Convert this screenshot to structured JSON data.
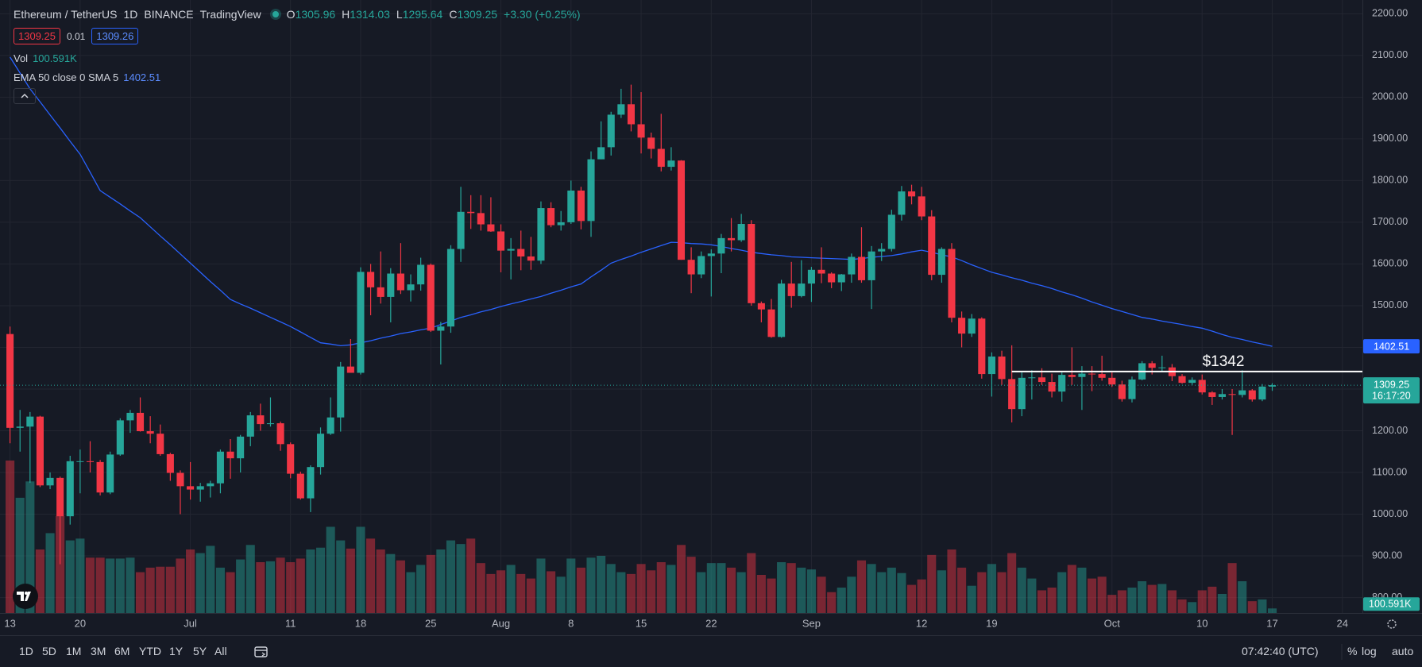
{
  "chart_data": {
    "type": "candlestick",
    "title_parts": [
      "Ethereum / TetherUS",
      "1D",
      "BINANCE",
      "TradingView"
    ],
    "ohlc_labels": [
      "O",
      "H",
      "L",
      "C"
    ],
    "change_label": "+3.30 (+0.25%)",
    "bid": 1309.25,
    "spread": 0.01,
    "ask": 1309.26,
    "volume_name": "Vol",
    "volume_last_label": "100.591K",
    "up_color": "#26a69a",
    "down_color": "#f23645",
    "ylim": [
      763,
      2233
    ],
    "yticks": [
      {
        "value": 800,
        "label": "800.00"
      },
      {
        "value": 900,
        "label": "900.00"
      },
      {
        "value": 1000,
        "label": "1000.00"
      },
      {
        "value": 1100,
        "label": "1100.00"
      },
      {
        "value": 1200,
        "label": "1200.00"
      },
      {
        "value": 1300,
        "label": "1300.00"
      },
      {
        "value": 1400,
        "label": "1400.00"
      },
      {
        "value": 1500,
        "label": "1500.00"
      },
      {
        "value": 1600,
        "label": "1600.00"
      },
      {
        "value": 1700,
        "label": "1700.00"
      },
      {
        "value": 1800,
        "label": "1800.00"
      },
      {
        "value": 1900,
        "label": "1900.00"
      },
      {
        "value": 2000,
        "label": "2000.00"
      },
      {
        "value": 2100,
        "label": "2100.00"
      },
      {
        "value": 2200,
        "label": "2200.00"
      }
    ],
    "xlim": [
      -1,
      135
    ],
    "xticks": [
      {
        "value": 0,
        "label": "13"
      },
      {
        "value": 7,
        "label": "20"
      },
      {
        "value": 18,
        "label": "Jul"
      },
      {
        "value": 28,
        "label": "11"
      },
      {
        "value": 35,
        "label": "18"
      },
      {
        "value": 42,
        "label": "25"
      },
      {
        "value": 49,
        "label": "Aug"
      },
      {
        "value": 56,
        "label": "8"
      },
      {
        "value": 63,
        "label": "15"
      },
      {
        "value": 70,
        "label": "22"
      },
      {
        "value": 80,
        "label": "Sep"
      },
      {
        "value": 91,
        "label": "12"
      },
      {
        "value": 98,
        "label": "19"
      },
      {
        "value": 110,
        "label": "Oct"
      },
      {
        "value": 119,
        "label": "10"
      },
      {
        "value": 126,
        "label": "17"
      },
      {
        "value": 133,
        "label": "24"
      }
    ],
    "grid": true,
    "candles": [
      [
        1432,
        1450,
        1170,
        1207
      ],
      [
        1207,
        1250,
        1150,
        1210
      ],
      [
        1210,
        1245,
        1075,
        1234
      ],
      [
        1234,
        1236,
        1065,
        1069
      ],
      [
        1069,
        1100,
        1060,
        1087
      ],
      [
        1087,
        1090,
        880,
        995
      ],
      [
        995,
        1140,
        975,
        1127
      ],
      [
        1127,
        1155,
        1050,
        1127
      ],
      [
        1127,
        1175,
        1100,
        1125
      ],
      [
        1125,
        1130,
        1045,
        1052
      ],
      [
        1052,
        1150,
        1048,
        1143
      ],
      [
        1143,
        1230,
        1140,
        1225
      ],
      [
        1225,
        1250,
        1195,
        1243
      ],
      [
        1243,
        1280,
        1198,
        1199
      ],
      [
        1199,
        1235,
        1170,
        1193
      ],
      [
        1193,
        1215,
        1140,
        1144
      ],
      [
        1144,
        1147,
        1080,
        1099
      ],
      [
        1099,
        1105,
        1000,
        1067
      ],
      [
        1067,
        1125,
        1035,
        1059
      ],
      [
        1059,
        1075,
        1030,
        1067
      ],
      [
        1067,
        1080,
        1040,
        1074
      ],
      [
        1074,
        1155,
        1050,
        1150
      ],
      [
        1150,
        1180,
        1085,
        1134
      ],
      [
        1134,
        1190,
        1100,
        1186
      ],
      [
        1186,
        1245,
        1163,
        1237
      ],
      [
        1237,
        1265,
        1200,
        1216
      ],
      [
        1216,
        1280,
        1210,
        1218
      ],
      [
        1218,
        1222,
        1152,
        1168
      ],
      [
        1168,
        1172,
        1086,
        1097
      ],
      [
        1097,
        1102,
        1035,
        1038
      ],
      [
        1038,
        1117,
        1005,
        1113
      ],
      [
        1113,
        1208,
        1095,
        1193
      ],
      [
        1193,
        1280,
        1190,
        1232
      ],
      [
        1232,
        1365,
        1198,
        1354
      ],
      [
        1354,
        1420,
        1339,
        1339
      ],
      [
        1339,
        1592,
        1335,
        1581
      ],
      [
        1581,
        1600,
        1477,
        1544
      ],
      [
        1544,
        1630,
        1505,
        1521
      ],
      [
        1521,
        1590,
        1460,
        1577
      ],
      [
        1577,
        1650,
        1528,
        1537
      ],
      [
        1537,
        1575,
        1510,
        1551
      ],
      [
        1551,
        1615,
        1536,
        1598
      ],
      [
        1598,
        1601,
        1437,
        1440
      ],
      [
        1440,
        1461,
        1359,
        1450
      ],
      [
        1450,
        1645,
        1435,
        1636
      ],
      [
        1636,
        1785,
        1605,
        1725
      ],
      [
        1725,
        1765,
        1684,
        1722
      ],
      [
        1722,
        1765,
        1680,
        1695
      ],
      [
        1695,
        1760,
        1677,
        1678
      ],
      [
        1678,
        1695,
        1580,
        1632
      ],
      [
        1632,
        1662,
        1563,
        1636
      ],
      [
        1636,
        1680,
        1585,
        1618
      ],
      [
        1618,
        1665,
        1586,
        1608
      ],
      [
        1608,
        1750,
        1600,
        1734
      ],
      [
        1734,
        1748,
        1688,
        1693
      ],
      [
        1693,
        1727,
        1680,
        1700
      ],
      [
        1700,
        1800,
        1696,
        1776
      ],
      [
        1776,
        1785,
        1683,
        1703
      ],
      [
        1703,
        1870,
        1665,
        1851
      ],
      [
        1851,
        1942,
        1851,
        1880
      ],
      [
        1880,
        1965,
        1860,
        1958
      ],
      [
        1958,
        2020,
        1950,
        1983
      ],
      [
        1983,
        2030,
        1918,
        1935
      ],
      [
        1935,
        2012,
        1865,
        1903
      ],
      [
        1903,
        1915,
        1853,
        1876
      ],
      [
        1876,
        1960,
        1822,
        1833
      ],
      [
        1833,
        1880,
        1824,
        1848
      ],
      [
        1848,
        1849,
        1610,
        1610
      ],
      [
        1610,
        1640,
        1530,
        1575
      ],
      [
        1575,
        1630,
        1566,
        1619
      ],
      [
        1619,
        1635,
        1522,
        1625
      ],
      [
        1625,
        1672,
        1578,
        1662
      ],
      [
        1662,
        1710,
        1630,
        1657
      ],
      [
        1657,
        1720,
        1653,
        1696
      ],
      [
        1696,
        1705,
        1500,
        1506
      ],
      [
        1506,
        1510,
        1460,
        1491
      ],
      [
        1491,
        1516,
        1423,
        1425
      ],
      [
        1425,
        1562,
        1423,
        1553
      ],
      [
        1553,
        1605,
        1495,
        1523
      ],
      [
        1523,
        1609,
        1520,
        1553
      ],
      [
        1553,
        1593,
        1509,
        1586
      ],
      [
        1586,
        1640,
        1554,
        1577
      ],
      [
        1577,
        1580,
        1542,
        1556
      ],
      [
        1556,
        1576,
        1535,
        1575
      ],
      [
        1575,
        1625,
        1555,
        1617
      ],
      [
        1617,
        1688,
        1555,
        1561
      ],
      [
        1561,
        1643,
        1492,
        1630
      ],
      [
        1630,
        1650,
        1607,
        1636
      ],
      [
        1636,
        1730,
        1630,
        1718
      ],
      [
        1718,
        1787,
        1704,
        1774
      ],
      [
        1774,
        1790,
        1743,
        1762
      ],
      [
        1762,
        1785,
        1705,
        1714
      ],
      [
        1714,
        1729,
        1561,
        1574
      ],
      [
        1574,
        1640,
        1555,
        1636
      ],
      [
        1636,
        1650,
        1460,
        1471
      ],
      [
        1471,
        1486,
        1400,
        1433
      ],
      [
        1433,
        1480,
        1425,
        1469
      ],
      [
        1469,
        1472,
        1325,
        1336
      ],
      [
        1336,
        1388,
        1282,
        1378
      ],
      [
        1378,
        1392,
        1310,
        1324
      ],
      [
        1324,
        1405,
        1220,
        1252
      ],
      [
        1252,
        1340,
        1235,
        1327
      ],
      [
        1327,
        1345,
        1275,
        1328
      ],
      [
        1328,
        1350,
        1310,
        1317
      ],
      [
        1317,
        1337,
        1280,
        1294
      ],
      [
        1294,
        1340,
        1270,
        1334
      ],
      [
        1334,
        1400,
        1310,
        1329
      ],
      [
        1329,
        1355,
        1250,
        1337
      ],
      [
        1337,
        1355,
        1295,
        1336
      ],
      [
        1336,
        1380,
        1320,
        1327
      ],
      [
        1327,
        1340,
        1305,
        1311
      ],
      [
        1311,
        1320,
        1270,
        1276
      ],
      [
        1276,
        1330,
        1268,
        1323
      ],
      [
        1323,
        1367,
        1321,
        1362
      ],
      [
        1362,
        1367,
        1335,
        1351
      ],
      [
        1351,
        1380,
        1342,
        1352
      ],
      [
        1352,
        1360,
        1319,
        1331
      ],
      [
        1331,
        1336,
        1313,
        1315
      ],
      [
        1315,
        1328,
        1310,
        1322
      ],
      [
        1322,
        1335,
        1287,
        1292
      ],
      [
        1292,
        1295,
        1262,
        1281
      ],
      [
        1281,
        1300,
        1275,
        1288
      ],
      [
        1288,
        1300,
        1190,
        1286
      ],
      [
        1286,
        1345,
        1280,
        1297
      ],
      [
        1297,
        1300,
        1270,
        1275
      ],
      [
        1275,
        1312,
        1271,
        1306
      ],
      [
        1305.96,
        1314.03,
        1295.64,
        1309.25
      ]
    ],
    "volume": [
      3360000,
      2540000,
      2900000,
      1400000,
      1760000,
      2140000,
      1600000,
      1640000,
      1220000,
      1220000,
      1200000,
      1200000,
      1220000,
      900000,
      1000000,
      1020000,
      1020000,
      1200000,
      1400000,
      1320000,
      1480000,
      1000000,
      900000,
      1180000,
      1500000,
      1120000,
      1140000,
      1220000,
      1120000,
      1200000,
      1400000,
      1440000,
      1900000,
      1600000,
      1420000,
      1900000,
      1640000,
      1400000,
      1300000,
      1160000,
      900000,
      1060000,
      1280000,
      1400000,
      1600000,
      1520000,
      1640000,
      1100000,
      860000,
      940000,
      1060000,
      860000,
      760000,
      1200000,
      920000,
      800000,
      1200000,
      1000000,
      1220000,
      1260000,
      1080000,
      900000,
      860000,
      1080000,
      940000,
      1120000,
      1060000,
      1500000,
      1240000,
      900000,
      1100000,
      1100000,
      1000000,
      900000,
      1320000,
      840000,
      760000,
      1120000,
      1100000,
      1000000,
      960000,
      800000,
      460000,
      560000,
      800000,
      1160000,
      1080000,
      900000,
      1000000,
      880000,
      620000,
      740000,
      1280000,
      940000,
      1400000,
      1000000,
      600000,
      900000,
      1080000,
      900000,
      1320000,
      1000000,
      760000,
      500000,
      560000,
      900000,
      1060000,
      1000000,
      760000,
      800000,
      400000,
      500000,
      560000,
      700000,
      620000,
      640000,
      500000,
      300000,
      240000,
      500000,
      580000,
      420000,
      1100000,
      700000,
      260000,
      300000,
      100591
    ],
    "ema": {
      "name": "EMA 50 close 0 SMA 5",
      "color": "#2962ff",
      "values": [
        2096,
        2058,
        2020,
        1989,
        1957,
        1926,
        1894,
        1863,
        1820,
        1776,
        1760,
        1744,
        1727,
        1711,
        1689,
        1667,
        1646,
        1624,
        1602,
        1580,
        1558,
        1537,
        1515,
        1504,
        1494,
        1483,
        1472,
        1461,
        1450,
        1437,
        1424,
        1411,
        1408,
        1404,
        1406,
        1411,
        1416,
        1422,
        1427,
        1433,
        1437,
        1442,
        1446,
        1455,
        1463,
        1472,
        1478,
        1485,
        1491,
        1498,
        1504,
        1510,
        1516,
        1522,
        1530,
        1537,
        1545,
        1552,
        1569,
        1585,
        1602,
        1611,
        1619,
        1628,
        1636,
        1644,
        1652,
        1651,
        1649,
        1648,
        1646,
        1642,
        1637,
        1633,
        1628,
        1625,
        1622,
        1620,
        1617,
        1616,
        1615,
        1614,
        1613,
        1612,
        1611,
        1613,
        1616,
        1618,
        1620,
        1624,
        1629,
        1633,
        1628,
        1622,
        1617,
        1608,
        1598,
        1589,
        1580,
        1574,
        1567,
        1561,
        1554,
        1548,
        1541,
        1533,
        1526,
        1518,
        1509,
        1501,
        1493,
        1486,
        1479,
        1472,
        1468,
        1463,
        1459,
        1455,
        1450,
        1446,
        1439,
        1431,
        1424,
        1419,
        1413,
        1408,
        1402.51
      ]
    },
    "annotation": {
      "text": "$1342",
      "value": 1342,
      "start": 100
    },
    "countdown": "16:17:20",
    "range_buttons": [
      "1D",
      "5D",
      "1M",
      "3M",
      "6M",
      "YTD",
      "1Y",
      "5Y",
      "All"
    ],
    "clock": "07:42:40 (UTC)",
    "scale_buttons": [
      "%",
      "log",
      "auto"
    ]
  }
}
